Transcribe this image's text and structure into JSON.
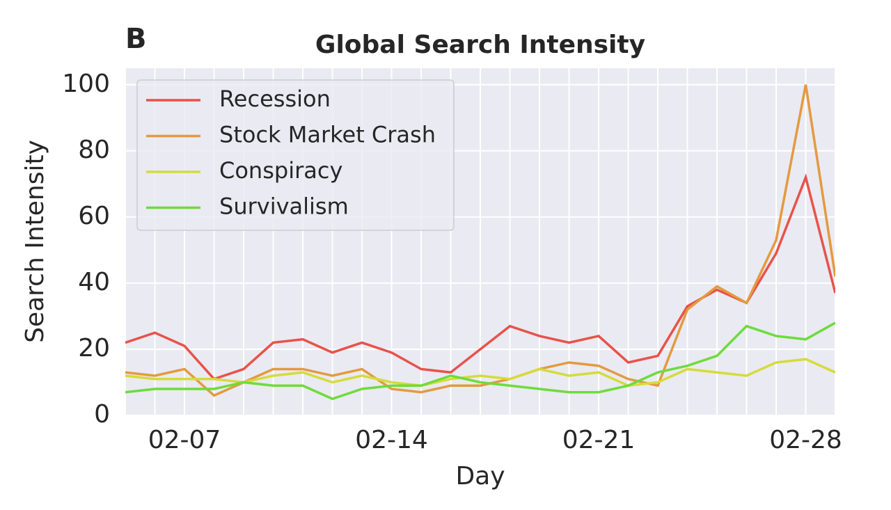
{
  "panel_label": "B",
  "chart_data": {
    "type": "line",
    "title": "Global Search Intensity",
    "xlabel": "Day",
    "ylabel": "Search Intensity",
    "x": [
      "02-05",
      "02-06",
      "02-07",
      "02-08",
      "02-09",
      "02-10",
      "02-11",
      "02-12",
      "02-13",
      "02-14",
      "02-15",
      "02-16",
      "02-17",
      "02-18",
      "02-19",
      "02-20",
      "02-21",
      "02-22",
      "02-23",
      "02-24",
      "02-25",
      "02-26",
      "02-27",
      "02-28",
      "02-29"
    ],
    "xticks": [
      "02-07",
      "02-14",
      "02-21",
      "02-28"
    ],
    "ylim": [
      0,
      105
    ],
    "yticks": [
      0,
      20,
      40,
      60,
      80,
      100
    ],
    "grid": true,
    "legend": "upper left",
    "series": [
      {
        "name": "Recession",
        "color": "#e8524a",
        "values": [
          22,
          25,
          21,
          11,
          14,
          22,
          23,
          19,
          22,
          19,
          14,
          13,
          20,
          27,
          24,
          22,
          24,
          16,
          18,
          33,
          38,
          34,
          49,
          72,
          37
        ]
      },
      {
        "name": "Stock Market Crash",
        "color": "#e49a3f",
        "values": [
          13,
          12,
          14,
          6,
          10,
          14,
          14,
          12,
          14,
          8,
          7,
          9,
          9,
          11,
          14,
          16,
          15,
          11,
          9,
          32,
          39,
          34,
          53,
          100,
          42
        ]
      },
      {
        "name": "Conspiracy",
        "color": "#d4dc3a",
        "values": [
          12,
          11,
          11,
          11,
          10,
          12,
          13,
          10,
          12,
          10,
          9,
          11,
          12,
          11,
          14,
          12,
          13,
          9,
          10,
          14,
          13,
          12,
          16,
          17,
          13
        ]
      },
      {
        "name": "Survivalism",
        "color": "#6ddc3c",
        "values": [
          7,
          8,
          8,
          8,
          10,
          9,
          9,
          5,
          8,
          9,
          9,
          12,
          10,
          9,
          8,
          7,
          7,
          9,
          13,
          15,
          18,
          27,
          24,
          23,
          28
        ]
      }
    ]
  }
}
